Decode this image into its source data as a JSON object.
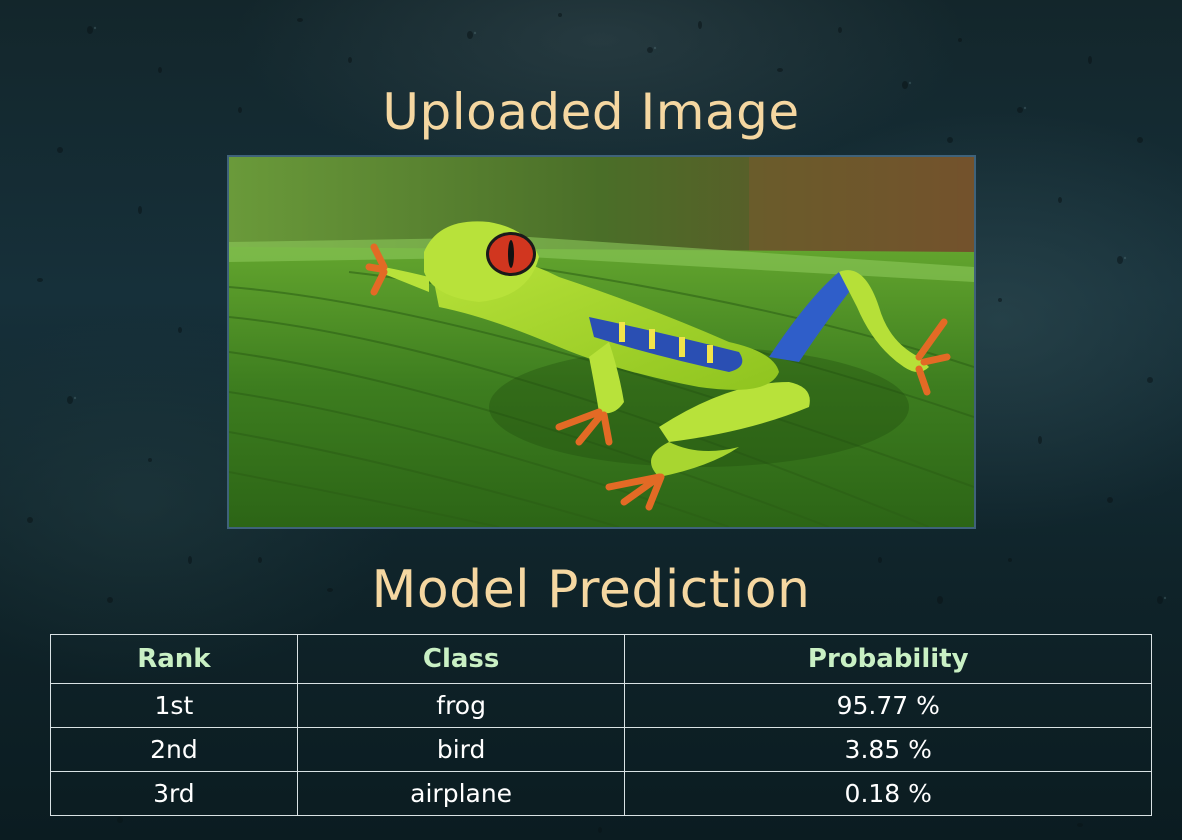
{
  "upload_section": {
    "title": "Uploaded Image",
    "image_icon": "frog-photo-icon"
  },
  "prediction_section": {
    "title": "Model Prediction",
    "columns": [
      "Rank",
      "Class",
      "Probability"
    ],
    "rows": [
      {
        "rank": "1st",
        "class": "frog",
        "probability": "95.77 %"
      },
      {
        "rank": "2nd",
        "class": "bird",
        "probability": "3.85 %"
      },
      {
        "rank": "3rd",
        "class": "airplane",
        "probability": "0.18 %"
      }
    ]
  },
  "colors": {
    "heading": "#f5d7a1",
    "table_header": "#c9f0c4",
    "table_text": "#ffffff",
    "table_border": "#d9e2e4",
    "image_border": "#3f627a"
  }
}
